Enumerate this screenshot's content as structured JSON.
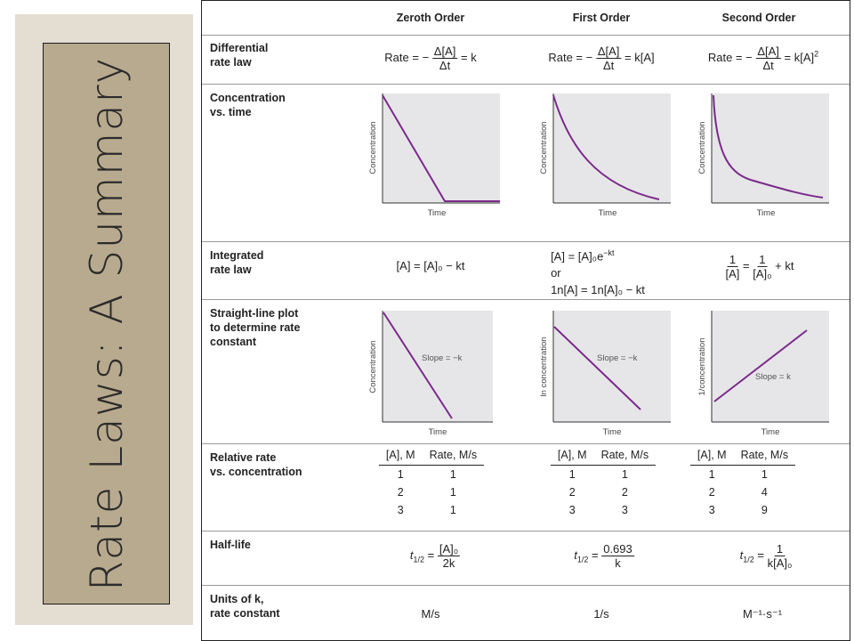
{
  "slide_title": "Rate Laws: A Summary",
  "headers": [
    "Zeroth Order",
    "First Order",
    "Second Order"
  ],
  "rows": {
    "differential": {
      "label_1": "Differential",
      "label_2": "rate law"
    },
    "concentration": {
      "label_1": "Concentration",
      "label_2": "vs. time"
    },
    "integrated": {
      "label_1": "Integrated",
      "label_2": "rate law"
    },
    "straight": {
      "label_1": "Straight-line plot",
      "label_2": "to determine rate",
      "label_3": "constant"
    },
    "relative": {
      "label_1": "Relative rate",
      "label_2": "vs. concentration"
    },
    "halflife": {
      "label_1": "Half-life"
    },
    "units": {
      "label_1": "Units of k,",
      "label_2": "rate constant"
    }
  },
  "differential": {
    "rate_prefix": "Rate = −",
    "num": "Δ[A]",
    "den": "Δt",
    "zeroth_rhs": "= k",
    "first_rhs": "= k[A]",
    "second_rhs": "= k[A]",
    "second_exp": "2"
  },
  "conc_plots": {
    "y_label": "Concentration",
    "x_label": "Time"
  },
  "integrated": {
    "zeroth": "[A] = [A]₀ − kt",
    "first_line1": "[A] = [A]₀e",
    "first_exp": "−kt",
    "first_or": "or",
    "first_line3": "1n[A] = 1n[A]₀ − kt",
    "second_num1": "1",
    "second_den1": "[A]",
    "second_eq": "=",
    "second_num2": "1",
    "second_den2": "[A]₀",
    "second_rhs": "+ kt"
  },
  "line_plots": {
    "x_label": "Time",
    "zeroth_y": "Concentration",
    "first_y": "ln concentration",
    "second_y": "1/concentration",
    "zeroth_slope": "Slope = −k",
    "first_slope": "Slope = −k",
    "second_slope": "Slope = k"
  },
  "relative": {
    "col1": "[A], M",
    "col2": "Rate, M/s",
    "zeroth": [
      [
        "1",
        "1"
      ],
      [
        "2",
        "1"
      ],
      [
        "3",
        "1"
      ]
    ],
    "first": [
      [
        "1",
        "1"
      ],
      [
        "2",
        "2"
      ],
      [
        "3",
        "3"
      ]
    ],
    "second": [
      [
        "1",
        "1"
      ],
      [
        "2",
        "4"
      ],
      [
        "3",
        "9"
      ]
    ]
  },
  "halflife": {
    "t_label": "t",
    "t_sub": "1/2",
    "eq": "=",
    "zeroth_num": "[A]₀",
    "zeroth_den": "2k",
    "first_num": "0.693",
    "first_den": "k",
    "second_num": "1",
    "second_den": "k[A]₀"
  },
  "units": {
    "zeroth": "M/s",
    "first": "1/s",
    "second": "M⁻¹·s⁻¹"
  },
  "colors": {
    "curve": "#7b2a8a",
    "plot_bg": "#e6e6e8",
    "title_box": "#b8aa8e",
    "left_panel": "#e3ddd2"
  }
}
